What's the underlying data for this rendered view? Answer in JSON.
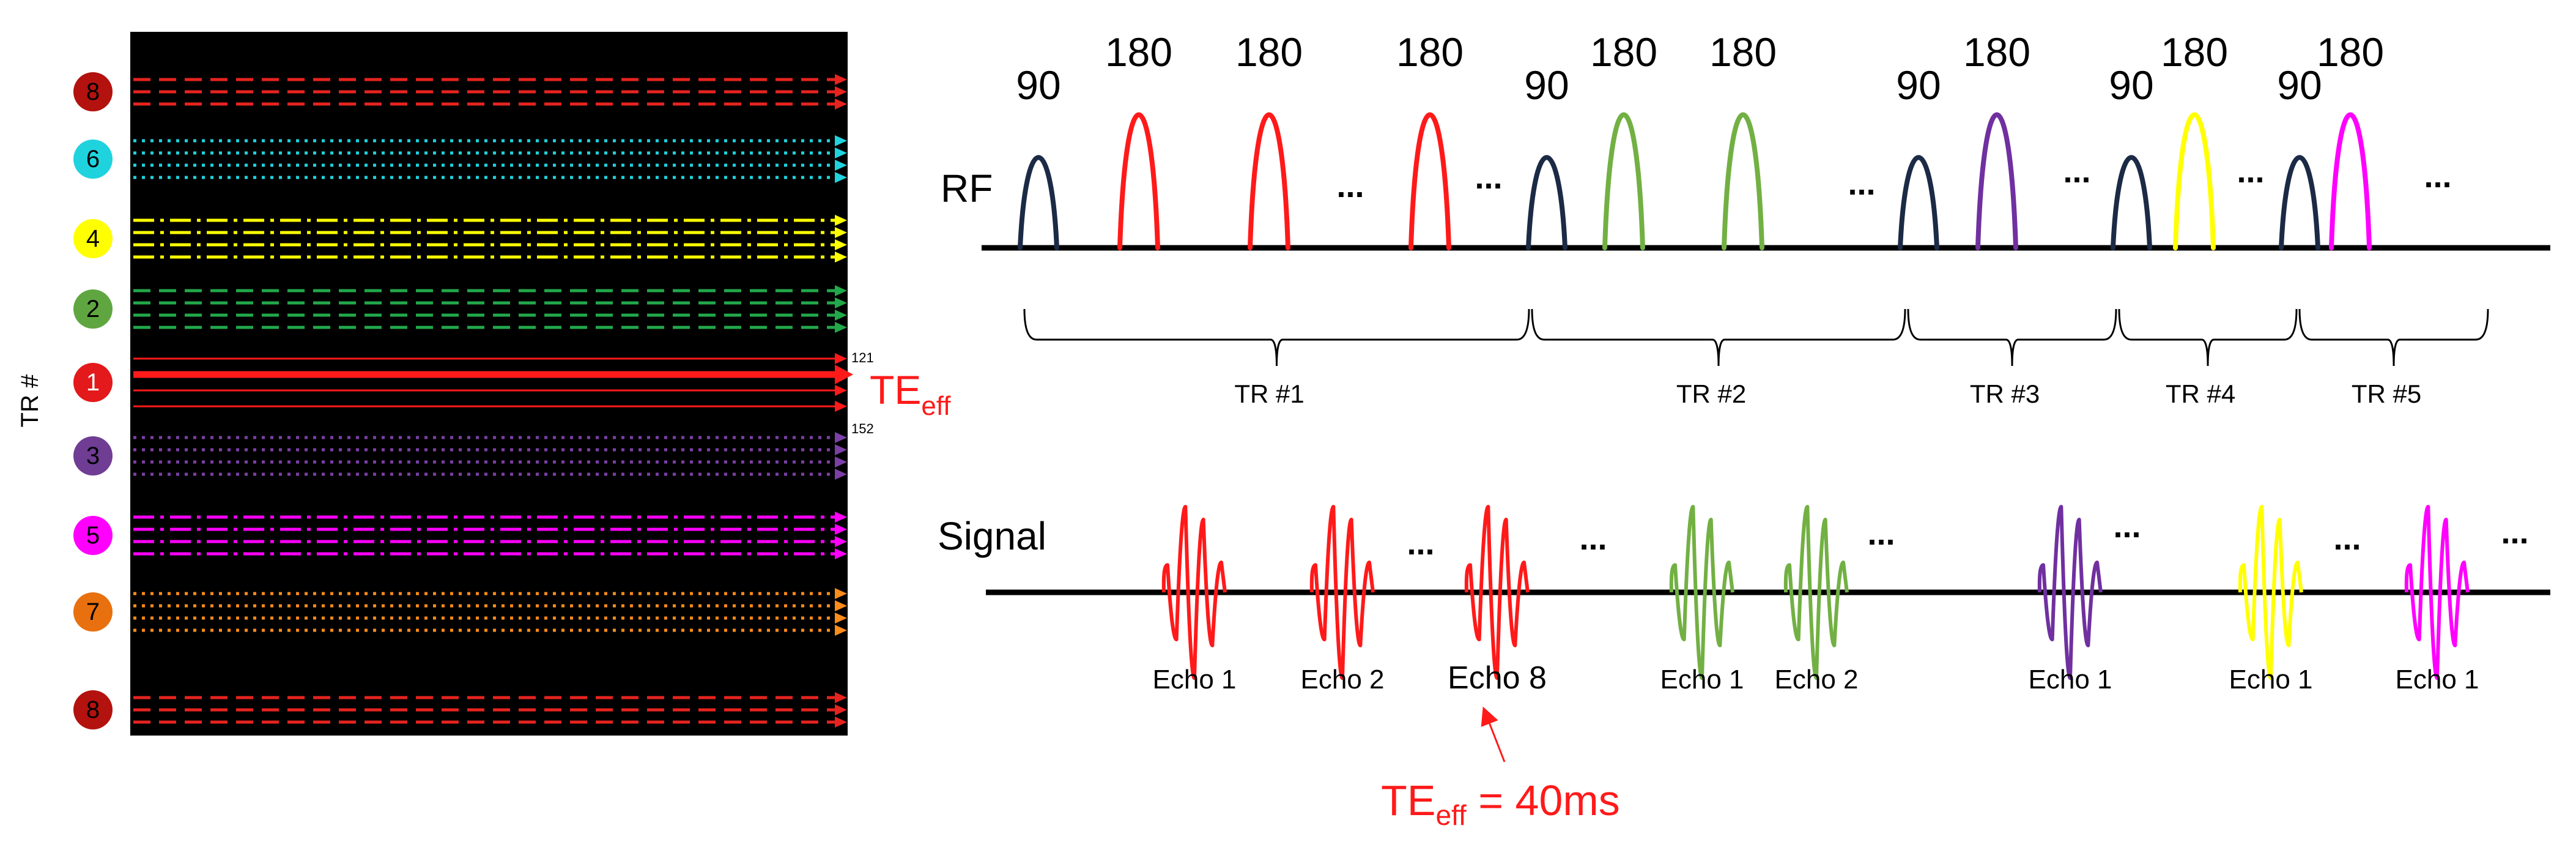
{
  "kspace": {
    "axis_label": "TR #",
    "bg": "#000000",
    "small_top": "121",
    "small_bottom": "152",
    "teff_main": "TE",
    "teff_sub": "eff",
    "groups": [
      {
        "label": "8",
        "color": "#e6231e",
        "circle": "#b3120f",
        "text": "#000000",
        "style": "dashed",
        "lines": 3
      },
      {
        "label": "6",
        "color": "#1fd3de",
        "circle": "#1fd3de",
        "text": "#000000",
        "style": "dotted",
        "lines": 4
      },
      {
        "label": "4",
        "color": "#ffff00",
        "circle": "#ffff00",
        "text": "#000000",
        "style": "dashdot",
        "lines": 4
      },
      {
        "label": "2",
        "color": "#22a84a",
        "circle": "#5fa640",
        "text": "#000000",
        "style": "dashed",
        "lines": 4
      },
      {
        "label": "1",
        "color": "#ff1a1a",
        "circle": "#e3191c",
        "text": "#ffffff",
        "style": "solid",
        "lines": 4
      },
      {
        "label": "3",
        "color": "#7b3fa6",
        "circle": "#6f3d93",
        "text": "#000000",
        "style": "dotted",
        "lines": 4
      },
      {
        "label": "5",
        "color": "#ff00ff",
        "circle": "#ff00ff",
        "text": "#000000",
        "style": "dashdot",
        "lines": 4
      },
      {
        "label": "7",
        "color": "#ff8c1a",
        "circle": "#e8700f",
        "text": "#000000",
        "style": "dotted",
        "lines": 4
      },
      {
        "label": "8",
        "color": "#e6231e",
        "circle": "#b3120f",
        "text": "#000000",
        "style": "dashed",
        "lines": 3
      }
    ]
  },
  "rf": {
    "label": "RF",
    "pulses": [
      {
        "label": "90",
        "color": "#1b2a45"
      },
      {
        "label": "180",
        "color": "#ff1a1a"
      },
      {
        "label": "180",
        "color": "#ff1a1a"
      },
      {
        "label": "180",
        "color": "#ff1a1a"
      },
      {
        "label": "90",
        "color": "#1b2a45"
      },
      {
        "label": "180",
        "color": "#72b043"
      },
      {
        "label": "180",
        "color": "#72b043"
      },
      {
        "label": "90",
        "color": "#1b2a45"
      },
      {
        "label": "180",
        "color": "#7030a0"
      },
      {
        "label": "90",
        "color": "#1b2a45"
      },
      {
        "label": "180",
        "color": "#ffff00"
      },
      {
        "label": "90",
        "color": "#1b2a45"
      },
      {
        "label": "180",
        "color": "#ff00ff"
      }
    ],
    "ellipsis": "...",
    "tr_labels": [
      "TR #1",
      "TR #2",
      "TR #3",
      "TR #4",
      "TR #5"
    ]
  },
  "signal": {
    "label": "Signal",
    "echoes": [
      {
        "label": "Echo 1",
        "color": "#ff1a1a"
      },
      {
        "label": "Echo 2",
        "color": "#ff1a1a"
      },
      {
        "label": "Echo 8",
        "color": "#ff1a1a"
      },
      {
        "label": "Echo 1",
        "color": "#72b043"
      },
      {
        "label": "Echo 2",
        "color": "#72b043"
      },
      {
        "label": "Echo 1",
        "color": "#7030a0"
      },
      {
        "label": "Echo 1",
        "color": "#ffff00"
      },
      {
        "label": "Echo 1",
        "color": "#ff00ff"
      }
    ],
    "ellipsis": "...",
    "teff_main": "TE",
    "teff_sub": "eff",
    "teff_value": " = 40ms",
    "annotation_color": "#ff1a1a"
  }
}
